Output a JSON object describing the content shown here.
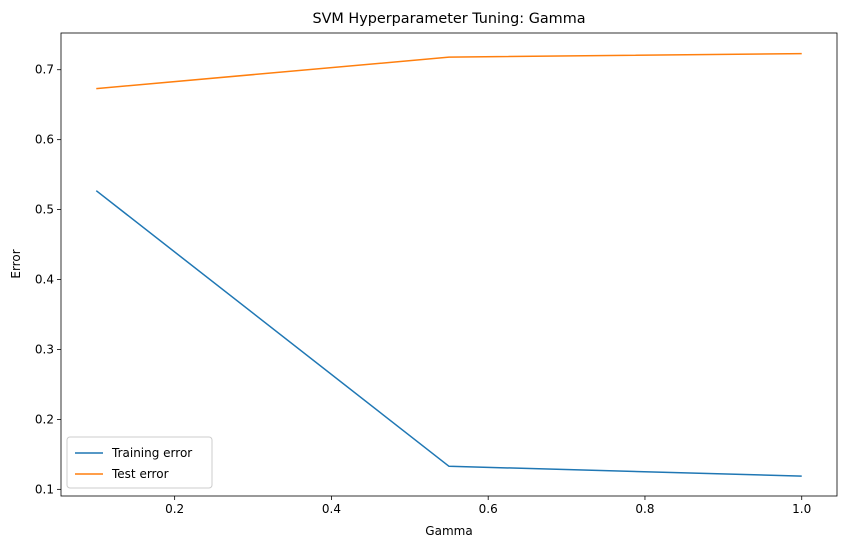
{
  "chart_data": {
    "type": "line",
    "title": "SVM Hyperparameter Tuning: Gamma",
    "xlabel": "Gamma",
    "ylabel": "Error",
    "x": [
      0.1,
      0.55,
      1.0
    ],
    "series": [
      {
        "name": "Training error",
        "values": [
          0.527,
          0.133,
          0.119
        ],
        "color": "#1f77b4"
      },
      {
        "name": "Test error",
        "values": [
          0.673,
          0.718,
          0.723
        ],
        "color": "#ff7f0e"
      }
    ],
    "xlim": [
      0.055,
      1.045
    ],
    "ylim": [
      0.0905,
      0.7525
    ],
    "xticks": [
      0.2,
      0.4,
      0.6,
      0.8,
      1.0
    ],
    "xtick_labels": [
      "0.2",
      "0.4",
      "0.6",
      "0.8",
      "1.0"
    ],
    "yticks": [
      0.1,
      0.2,
      0.3,
      0.4,
      0.5,
      0.6,
      0.7
    ],
    "ytick_labels": [
      "0.1",
      "0.2",
      "0.3",
      "0.4",
      "0.5",
      "0.6",
      "0.7"
    ],
    "grid": false,
    "legend_position": "lower-left"
  }
}
